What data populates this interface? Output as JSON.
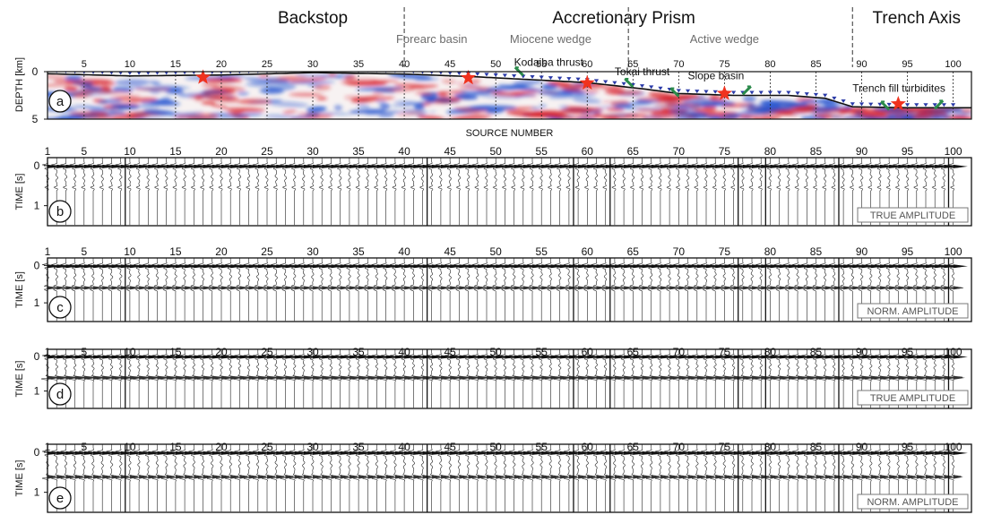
{
  "chart_data": {
    "type": "seismic-section",
    "regions": [
      {
        "label": "Backstop",
        "source": 30
      },
      {
        "label": "Accretionary Prism",
        "source": 64
      },
      {
        "label": "Trench Axis",
        "source": 96
      }
    ],
    "subregions": [
      {
        "label": "Forearc basin",
        "source": 43
      },
      {
        "label": "Miocene wedge",
        "source": 56
      },
      {
        "label": "Active wedge",
        "source": 75
      }
    ],
    "region_dividers": [
      40,
      64.5,
      89
    ],
    "source_ticks": [
      5,
      10,
      15,
      20,
      25,
      30,
      35,
      40,
      45,
      50,
      55,
      60,
      65,
      70,
      75,
      80,
      85,
      90,
      95,
      100
    ],
    "source_first": 1,
    "source_range": [
      1,
      102
    ],
    "source_axis_label": "SOURCE NUMBER",
    "panels": [
      {
        "letter": "a",
        "kind": "depth-section",
        "ylabel": "DEPTH [km]",
        "yticks": [
          0,
          5
        ],
        "ylim": [
          0,
          5
        ]
      },
      {
        "letter": "b",
        "kind": "gathers",
        "ylabel": "TIME [s]",
        "yticks": [
          0,
          1
        ],
        "ylim": [
          -0.2,
          1.5
        ],
        "label_box": "TRUE AMPLITUDE",
        "reflector_time": 0.55,
        "reflector_strength": 0.25
      },
      {
        "letter": "c",
        "kind": "gathers",
        "ylabel": "TIME [s]",
        "yticks": [
          0,
          1
        ],
        "ylim": [
          -0.2,
          1.5
        ],
        "label_box": "NORM. AMPLITUDE",
        "reflector_time": 0.6,
        "reflector_strength": 0.9
      },
      {
        "letter": "d",
        "kind": "gathers",
        "ylabel": "TIME [s]",
        "yticks": [
          0,
          1
        ],
        "ylim": [
          -0.2,
          1.5
        ],
        "label_box": "TRUE AMPLITUDE",
        "reflector_time": 0.62,
        "reflector_strength": 1.0
      },
      {
        "letter": "e",
        "kind": "gathers",
        "ylabel": "TIME [s]",
        "yticks": [
          0,
          1
        ],
        "ylim": [
          -0.2,
          1.5
        ],
        "label_box": "NORM. AMPLITUDE",
        "reflector_time": 0.62,
        "reflector_strength": 0.85
      }
    ],
    "gather_breaks": [
      9,
      42,
      58,
      62,
      76,
      79,
      87,
      99
    ],
    "seafloor_depth": [
      {
        "source": 0.5,
        "depth": 0.2
      },
      {
        "source": 10,
        "depth": 0.45
      },
      {
        "source": 20,
        "depth": 0.35
      },
      {
        "source": 30,
        "depth": 0.1
      },
      {
        "source": 40,
        "depth": 0.25
      },
      {
        "source": 48,
        "depth": 0.55
      },
      {
        "source": 55,
        "depth": 0.9
      },
      {
        "source": 60,
        "depth": 1.15
      },
      {
        "source": 66,
        "depth": 1.8
      },
      {
        "source": 70,
        "depth": 2.3
      },
      {
        "source": 76,
        "depth": 2.5
      },
      {
        "source": 82,
        "depth": 2.5
      },
      {
        "source": 86,
        "depth": 2.8
      },
      {
        "source": 89,
        "depth": 3.7
      },
      {
        "source": 95,
        "depth": 3.8
      },
      {
        "source": 102,
        "depth": 3.8
      }
    ],
    "stars": [
      {
        "source": 18,
        "depth": 0.6
      },
      {
        "source": 47,
        "depth": 0.65
      },
      {
        "source": 60,
        "depth": 1.2
      },
      {
        "source": 75,
        "depth": 2.3
      },
      {
        "source": 94,
        "depth": 3.4
      }
    ],
    "annotations": [
      {
        "text": "Kodaiba thrust",
        "source": 52,
        "depth": -0.6
      },
      {
        "text": "Tokai thrust",
        "source": 63,
        "depth": 0.4
      },
      {
        "text": "Slope basin",
        "source": 71,
        "depth": 0.8
      },
      {
        "text": "Trench fill turbidites",
        "source": 89,
        "depth": 2.1
      }
    ],
    "faults": [
      {
        "source": 53,
        "depth": 0.4,
        "dir": -1
      },
      {
        "source": 65,
        "depth": 1.6,
        "dir": -1
      },
      {
        "source": 70,
        "depth": 2.6,
        "dir": -1
      },
      {
        "source": 77,
        "depth": 2.4,
        "dir": 1
      },
      {
        "source": 93,
        "depth": 4.0,
        "dir": -1
      },
      {
        "source": 98,
        "depth": 3.9,
        "dir": 1
      }
    ],
    "colors": {
      "star": "#f0321e",
      "fault": "#2a8a4a",
      "positive": "#d8202a",
      "negative": "#1d4fcf",
      "triangle": "#2a3aa8"
    }
  }
}
